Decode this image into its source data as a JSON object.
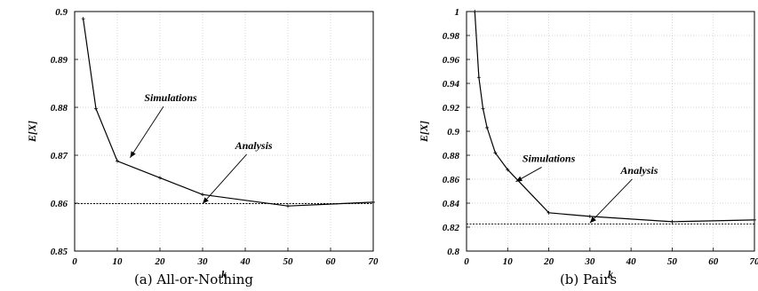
{
  "chart_data": [
    {
      "type": "line",
      "caption": "(a)  All-or-Nothing",
      "xlabel": "k",
      "ylabel": "E[X]",
      "xlim": [
        0,
        70
      ],
      "ylim": [
        0.85,
        0.9
      ],
      "xticks": [
        "0",
        "10",
        "20",
        "30",
        "40",
        "50",
        "60",
        "70"
      ],
      "yticks": [
        "0.85",
        "0.86",
        "0.87",
        "0.88",
        "0.89",
        "0.9"
      ],
      "grid": true,
      "series": [
        {
          "name": "Simulations",
          "x": [
            2,
            5,
            10,
            20,
            30,
            50,
            70
          ],
          "y": [
            0.8985,
            0.8797,
            0.8688,
            0.8653,
            0.8618,
            0.8594,
            0.8602
          ]
        },
        {
          "name": "Analysis",
          "x": [
            0,
            70
          ],
          "y": [
            0.8599,
            0.8599
          ]
        }
      ],
      "annotations": [
        {
          "text": "Simulations",
          "label_x": 22.5,
          "label_y": 0.8813,
          "point_x": 13,
          "point_y": 0.8695
        },
        {
          "text": "Analysis",
          "label_x": 42,
          "label_y": 0.8713,
          "point_x": 30,
          "point_y": 0.8599
        }
      ]
    },
    {
      "type": "line",
      "caption": "(b)  Pairs",
      "xlabel": "k",
      "ylabel": "E[X]",
      "xlim": [
        0,
        70
      ],
      "ylim": [
        0.8,
        1.0
      ],
      "xticks": [
        "0",
        "10",
        "20",
        "30",
        "40",
        "50",
        "60",
        "70"
      ],
      "yticks": [
        "0.8",
        "0.82",
        "0.84",
        "0.86",
        "0.88",
        "0.9",
        "0.92",
        "0.94",
        "0.96",
        "0.98",
        "1"
      ],
      "grid": true,
      "series": [
        {
          "name": "Simulations",
          "x": [
            2,
            3,
            4,
            5,
            7,
            10,
            20,
            30,
            50,
            70
          ],
          "y": [
            1.0,
            0.945,
            0.919,
            0.903,
            0.882,
            0.868,
            0.832,
            0.829,
            0.8245,
            0.826
          ]
        },
        {
          "name": "Analysis",
          "x": [
            0,
            70
          ],
          "y": [
            0.8225,
            0.8225
          ]
        }
      ],
      "annotations": [
        {
          "text": "Simulations",
          "label_x": 20,
          "label_y": 0.8745,
          "point_x": 12,
          "point_y": 0.858
        },
        {
          "text": "Analysis",
          "label_x": 42,
          "label_y": 0.8645,
          "point_x": 30,
          "point_y": 0.8235
        }
      ]
    }
  ]
}
